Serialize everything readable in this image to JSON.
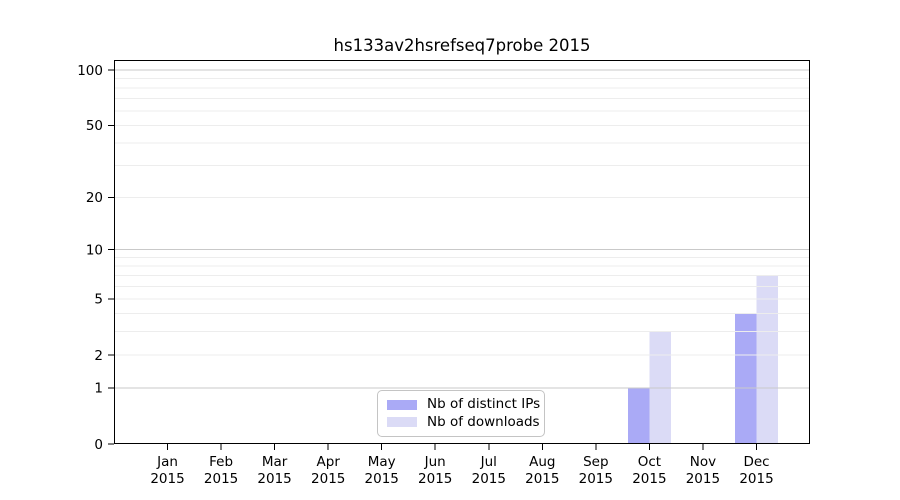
{
  "title": "hs133av2hsrefseq7probe 2015",
  "chart_data": {
    "type": "bar",
    "title": "hs133av2hsrefseq7probe 2015",
    "categories": [
      "Jan 2015",
      "Feb 2015",
      "Mar 2015",
      "Apr 2015",
      "May 2015",
      "Jun 2015",
      "Jul 2015",
      "Aug 2015",
      "Sep 2015",
      "Oct 2015",
      "Nov 2015",
      "Dec 2015"
    ],
    "series": [
      {
        "name": "Nb of distinct IPs",
        "color": "#aaaaf6",
        "values": [
          0,
          0,
          0,
          0,
          0,
          0,
          0,
          0,
          0,
          1,
          0,
          4
        ]
      },
      {
        "name": "Nb of downloads",
        "color": "#dbdbf6",
        "values": [
          0,
          0,
          0,
          0,
          0,
          0,
          0,
          0,
          0,
          3,
          0,
          7
        ]
      }
    ],
    "yscale": "log1p",
    "ylim": [
      0,
      115
    ],
    "yticks": [
      0,
      1,
      2,
      5,
      10,
      20,
      50,
      100
    ],
    "minor_gridlines": [
      3,
      4,
      6,
      7,
      8,
      9,
      30,
      40,
      60,
      70,
      80,
      90
    ],
    "decade_gridlines": [
      1,
      10,
      100
    ],
    "grid": "on",
    "legend_position": "lower center"
  },
  "colors": {
    "decade_gridline": "#c9c9c9",
    "light_gridline": "#ededed",
    "axis": "#000000",
    "text": "#000000",
    "background": "#ffffff"
  }
}
